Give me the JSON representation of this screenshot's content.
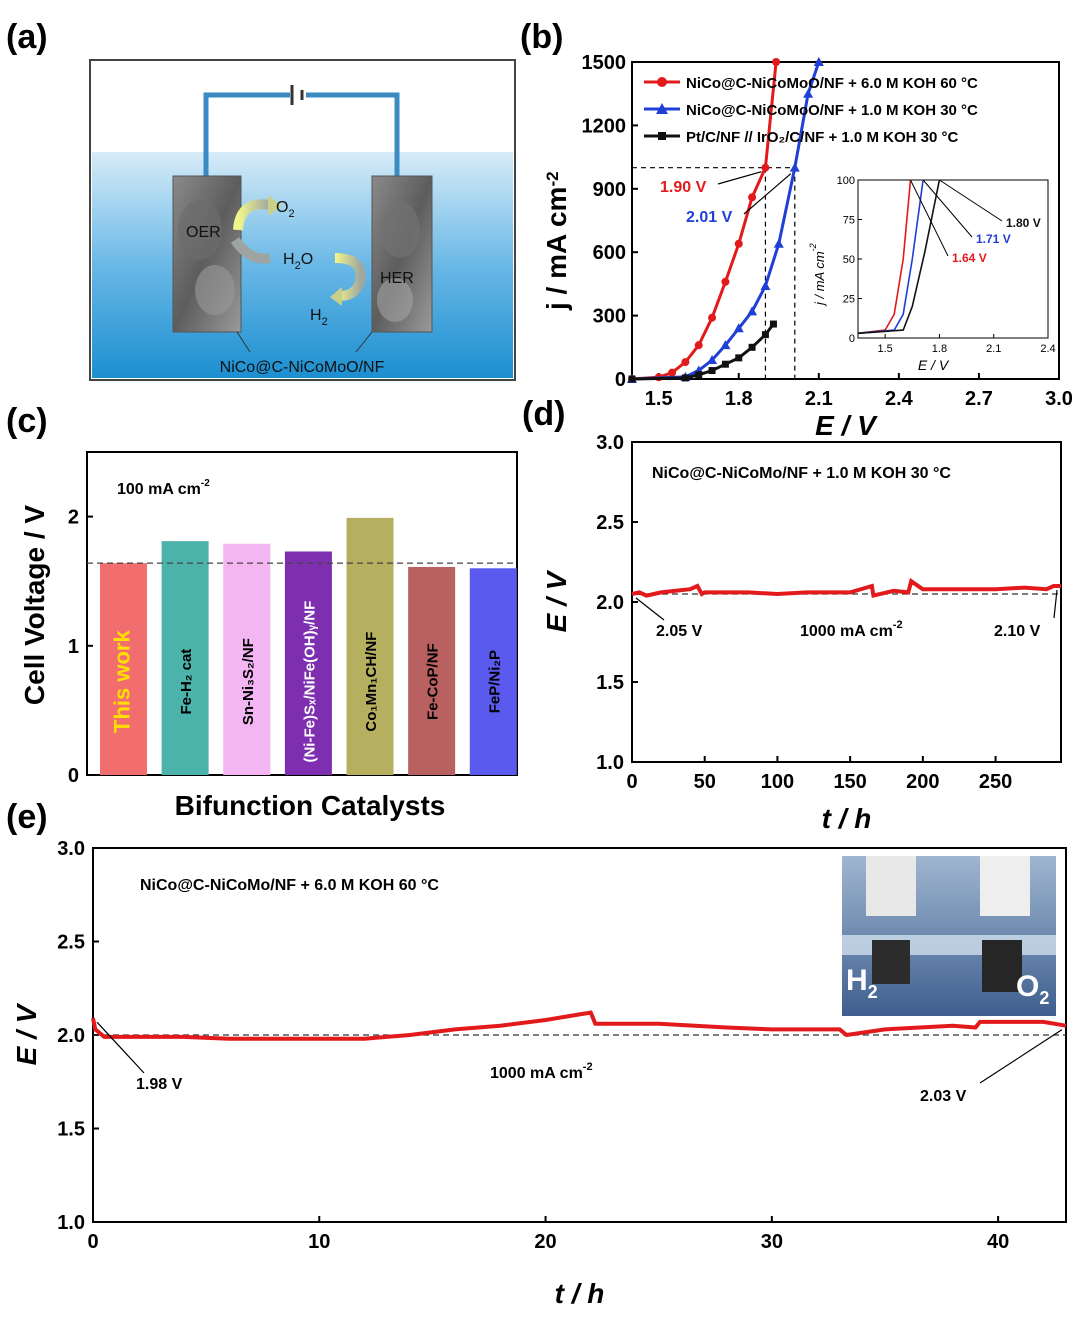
{
  "panels": {
    "a": "(a)",
    "b": "(b)",
    "c": "(c)",
    "d": "(d)",
    "e": "(e)"
  },
  "schematic": {
    "o2": "O",
    "o2_sub": "2",
    "h2o": "H",
    "h2o_sub": "2",
    "h2o_tail": "O",
    "h2": "H",
    "h2_sub": "2",
    "oer": "OER",
    "her": "HER",
    "electrode_label": "NiCo@C-NiCoMoO/NF"
  },
  "colors": {
    "red": "#e31a1c",
    "blue": "#1f3fd6",
    "black": "#111111",
    "water_top": "#d7ecf8",
    "water_bottom": "#1c8fd0"
  },
  "chart_data": [
    {
      "id": "b",
      "type": "line",
      "xlabel": "E / V",
      "ylabel": "j / mA cm",
      "ylabel_sup": "-2",
      "xlim": [
        1.4,
        3.0
      ],
      "ylim": [
        0,
        1500
      ],
      "xticks": [
        "1.5",
        "1.8",
        "2.1",
        "2.4",
        "2.7",
        "3.0"
      ],
      "yticks": [
        "0",
        "300",
        "600",
        "900",
        "1200",
        "1500"
      ],
      "series": [
        {
          "name": "NiCo@C-NiCoMoO/NF + 6.0 M KOH 60 °C",
          "color": "#e31a1c",
          "marker": "circle",
          "x": [
            1.4,
            1.5,
            1.55,
            1.6,
            1.65,
            1.7,
            1.75,
            1.8,
            1.85,
            1.9,
            1.94
          ],
          "y": [
            0,
            8,
            30,
            80,
            160,
            290,
            460,
            640,
            860,
            1000,
            1500
          ]
        },
        {
          "name": "NiCo@C-NiCoMoO/NF + 1.0 M KOH 30 °C",
          "color": "#1f3fd6",
          "marker": "triangle",
          "x": [
            1.4,
            1.6,
            1.65,
            1.7,
            1.75,
            1.8,
            1.85,
            1.9,
            1.95,
            2.01,
            2.06,
            2.1
          ],
          "y": [
            0,
            10,
            40,
            90,
            160,
            240,
            320,
            440,
            640,
            1000,
            1350,
            1500
          ]
        },
        {
          "name": "Pt/C/NF // IrO₂/C/NF + 1.0 M KOH 30 °C",
          "color": "#111111",
          "marker": "square",
          "x": [
            1.4,
            1.6,
            1.65,
            1.7,
            1.75,
            1.8,
            1.85,
            1.9,
            1.93
          ],
          "y": [
            0,
            5,
            20,
            40,
            70,
            100,
            150,
            210,
            260
          ]
        }
      ],
      "annotations": [
        {
          "text": "1.90 V",
          "color": "#e31a1c"
        },
        {
          "text": "2.01 V",
          "color": "#1f3fd6"
        }
      ],
      "inset": {
        "xlabel": "E / V",
        "ylabel": "j / mA cm",
        "ylabel_sup": "-2",
        "xlim": [
          1.35,
          2.4
        ],
        "ylim": [
          0,
          100
        ],
        "xticks": [
          "1.5",
          "1.8",
          "2.1",
          "2.4"
        ],
        "yticks": [
          "0",
          "25",
          "50",
          "75",
          "100"
        ],
        "series": [
          {
            "color": "#e31a1c",
            "x": [
              1.35,
              1.5,
              1.55,
              1.6,
              1.64
            ],
            "y": [
              3,
              5,
              15,
              50,
              100
            ]
          },
          {
            "color": "#1f3fd6",
            "x": [
              1.35,
              1.55,
              1.6,
              1.65,
              1.71
            ],
            "y": [
              3,
              5,
              15,
              50,
              100
            ]
          },
          {
            "color": "#111111",
            "x": [
              1.35,
              1.6,
              1.65,
              1.72,
              1.8
            ],
            "y": [
              3,
              5,
              20,
              55,
              100
            ]
          }
        ],
        "labels": [
          {
            "text": "1.80 V",
            "color": "#111111"
          },
          {
            "text": "1.71 V",
            "color": "#1f3fd6"
          },
          {
            "text": "1.64 V",
            "color": "#e31a1c"
          }
        ]
      }
    },
    {
      "id": "c",
      "type": "bar",
      "title": "100 mA cm",
      "title_sup": "-2",
      "xlabel": "Bifunction Catalysts",
      "ylabel": "Cell Voltage / V",
      "ylim": [
        0,
        2.5
      ],
      "yticks": [
        "0",
        "1",
        "2"
      ],
      "reference": 1.64,
      "categories": [
        "This work",
        "Fe-H₂ cat",
        "Sn-Ni₃S₂/NF",
        "(Ni-Fe)Sₓ/NiFe(OH)ᵧ/NF",
        "Co₁Mn₁CH/NF",
        "Fe-CoP/NF",
        "FeP/Ni₂P"
      ],
      "values": [
        1.64,
        1.81,
        1.79,
        1.73,
        1.99,
        1.61,
        1.6
      ],
      "colors": [
        "#f26d6d",
        "#4bb3a9",
        "#f3b6f3",
        "#7e2fb0",
        "#b5b060",
        "#b96060",
        "#5a5aef"
      ],
      "label_colors": [
        "#ffe000",
        "#000000",
        "#000000",
        "#ffffff",
        "#000000",
        "#000000",
        "#000000"
      ]
    },
    {
      "id": "d",
      "type": "line",
      "title": "NiCo@C-NiCoMo/NF + 1.0 M KOH 30 °C",
      "xlabel": "t / h",
      "ylabel": "E / V",
      "xlim": [
        0,
        295
      ],
      "ylim": [
        1.0,
        3.0
      ],
      "xticks": [
        "0",
        "50",
        "100",
        "150",
        "200",
        "250"
      ],
      "yticks": [
        "1.0",
        "1.5",
        "2.0",
        "2.5",
        "3.0"
      ],
      "reference": 2.05,
      "series": [
        {
          "color": "#e31a1c",
          "x": [
            0,
            5,
            10,
            20,
            30,
            40,
            45,
            48,
            50,
            60,
            80,
            100,
            120,
            150,
            165,
            166,
            180,
            190,
            192,
            200,
            220,
            250,
            270,
            285,
            290,
            295
          ],
          "y": [
            2.05,
            2.06,
            2.04,
            2.06,
            2.07,
            2.08,
            2.1,
            2.05,
            2.06,
            2.06,
            2.06,
            2.05,
            2.06,
            2.06,
            2.1,
            2.04,
            2.07,
            2.06,
            2.13,
            2.08,
            2.08,
            2.08,
            2.09,
            2.08,
            2.1,
            2.1
          ]
        }
      ],
      "annotations": [
        "2.05 V",
        "1000 mA cm",
        "2.10 V"
      ],
      "annotation_sup": "-2"
    },
    {
      "id": "e",
      "type": "line",
      "title": "NiCo@C-NiCoMo/NF + 6.0 M KOH 60 °C",
      "xlabel": "t / h",
      "ylabel": "E / V",
      "xlim": [
        0,
        43
      ],
      "ylim": [
        1.0,
        3.0
      ],
      "xticks": [
        "0",
        "10",
        "20",
        "30",
        "40"
      ],
      "yticks": [
        "1.0",
        "1.5",
        "2.0",
        "2.5",
        "3.0"
      ],
      "reference": 2.0,
      "series": [
        {
          "color": "#e31a1c",
          "x": [
            0,
            0.1,
            0.5,
            2,
            4,
            6,
            8,
            10,
            12,
            14,
            16,
            18,
            20,
            21.5,
            22,
            22.2,
            25,
            28,
            30,
            33,
            33.3,
            35,
            38,
            39,
            39.2,
            42,
            43
          ],
          "y": [
            2.09,
            2.03,
            1.99,
            1.99,
            1.99,
            1.98,
            1.98,
            1.98,
            1.98,
            2.0,
            2.03,
            2.05,
            2.08,
            2.11,
            2.12,
            2.06,
            2.06,
            2.04,
            2.03,
            2.03,
            2.0,
            2.03,
            2.05,
            2.04,
            2.07,
            2.07,
            2.05
          ]
        }
      ],
      "annotations": [
        "1.98 V",
        "1000 mA cm",
        "2.03 V"
      ],
      "annotation_sup": "-2",
      "photo_labels": [
        "H",
        "2",
        "O",
        "2"
      ]
    }
  ]
}
